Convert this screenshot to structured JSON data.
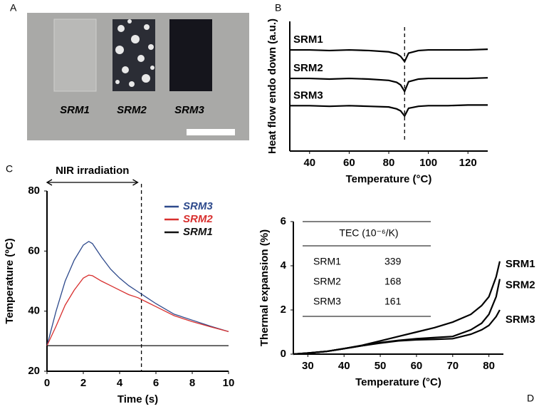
{
  "photo": {
    "panel": "A",
    "samples": [
      "SRM1",
      "SRM2",
      "SRM3"
    ]
  },
  "chart_data": [
    {
      "type": "line",
      "panel": "B",
      "xlabel": "Temperature (°C)",
      "ylabel": "Heat flow endo down (a.u.)",
      "x": [
        30,
        40,
        50,
        60,
        70,
        80,
        84,
        86,
        88,
        90,
        95,
        100,
        110,
        120,
        130
      ],
      "series": [
        {
          "name": "SRM1",
          "color": "#000000",
          "values": [
            7.8,
            7.8,
            7.75,
            7.8,
            7.75,
            7.65,
            7.5,
            7.3,
            6.9,
            7.55,
            7.75,
            7.8,
            7.8,
            7.8,
            7.85
          ]
        },
        {
          "name": "SRM2",
          "color": "#000000",
          "values": [
            5.6,
            5.6,
            5.55,
            5.6,
            5.55,
            5.45,
            5.3,
            5.1,
            4.6,
            5.35,
            5.55,
            5.6,
            5.6,
            5.6,
            5.65
          ]
        },
        {
          "name": "SRM3",
          "color": "#000000",
          "values": [
            3.5,
            3.5,
            3.45,
            3.5,
            3.45,
            3.4,
            3.25,
            3.1,
            2.7,
            3.3,
            3.45,
            3.5,
            3.5,
            3.55,
            3.55
          ]
        }
      ],
      "xlim": [
        30,
        130
      ],
      "ylim": [
        0,
        10
      ],
      "xticks": [
        40,
        60,
        80,
        100,
        120
      ],
      "vline": 88,
      "labels": "inline-start"
    },
    {
      "type": "line",
      "panel": "C",
      "xlabel": "Time (s)",
      "ylabel": "Temperature (ºC)",
      "x": [
        0,
        0.5,
        1,
        1.5,
        2,
        2.3,
        2.5,
        3,
        3.5,
        4,
        4.5,
        5,
        5.5,
        6,
        7,
        8,
        9,
        10
      ],
      "series": [
        {
          "name": "SRM3",
          "color": "#2e4a8c",
          "values": [
            28.5,
            40,
            50,
            57,
            62,
            63.2,
            62.5,
            58,
            54,
            51,
            48.5,
            46.5,
            44.5,
            42.5,
            39,
            37,
            35,
            33.2
          ]
        },
        {
          "name": "SRM2",
          "color": "#d8302f",
          "values": [
            28.5,
            35,
            42,
            47,
            51,
            52,
            51.8,
            50,
            48.5,
            47,
            45.5,
            44.5,
            43,
            41.5,
            38.5,
            36.5,
            34.8,
            33.2
          ]
        },
        {
          "name": "SRM1",
          "color": "#111111",
          "values": [
            28.5,
            28.5,
            28.5,
            28.5,
            28.5,
            28.5,
            28.5,
            28.5,
            28.5,
            28.5,
            28.5,
            28.5,
            28.5,
            28.5,
            28.5,
            28.5,
            28.5,
            28.5
          ]
        }
      ],
      "xlim": [
        0,
        10
      ],
      "ylim": [
        20,
        80
      ],
      "xticks": [
        0,
        2,
        4,
        6,
        8,
        10
      ],
      "yticks": [
        20,
        40,
        60,
        80
      ],
      "vline": 5.2,
      "annotation": {
        "text": "NIR irradiation",
        "span": [
          0,
          5
        ]
      },
      "legend": "upper right"
    },
    {
      "type": "line",
      "panel": "D",
      "xlabel": "Temperature (°C)",
      "ylabel": "Thermal expansion (%)",
      "x": [
        26,
        30,
        35,
        40,
        45,
        50,
        55,
        60,
        65,
        70,
        75,
        78,
        80,
        82,
        83
      ],
      "series": [
        {
          "name": "SRM1",
          "color": "#000000",
          "values": [
            0,
            0.05,
            0.12,
            0.25,
            0.4,
            0.6,
            0.8,
            1.0,
            1.2,
            1.45,
            1.8,
            2.2,
            2.6,
            3.5,
            4.2
          ]
        },
        {
          "name": "SRM2",
          "color": "#000000",
          "values": [
            0,
            0.05,
            0.12,
            0.25,
            0.38,
            0.52,
            0.62,
            0.7,
            0.75,
            0.8,
            1.1,
            1.4,
            1.8,
            2.6,
            3.4
          ]
        },
        {
          "name": "SRM3",
          "color": "#000000",
          "values": [
            0,
            0.05,
            0.12,
            0.25,
            0.38,
            0.5,
            0.6,
            0.65,
            0.67,
            0.7,
            0.9,
            1.1,
            1.3,
            1.7,
            2.0
          ]
        }
      ],
      "xlim": [
        26,
        84
      ],
      "ylim": [
        0,
        6
      ],
      "xticks": [
        30,
        40,
        50,
        60,
        70,
        80
      ],
      "yticks": [
        0,
        2,
        4,
        6
      ],
      "labels": "inline-end",
      "table": {
        "header": "TEC (10⁻⁶/K)",
        "rows": [
          [
            "SRM1",
            "339"
          ],
          [
            "SRM2",
            "168"
          ],
          [
            "SRM3",
            "161"
          ]
        ]
      }
    }
  ]
}
